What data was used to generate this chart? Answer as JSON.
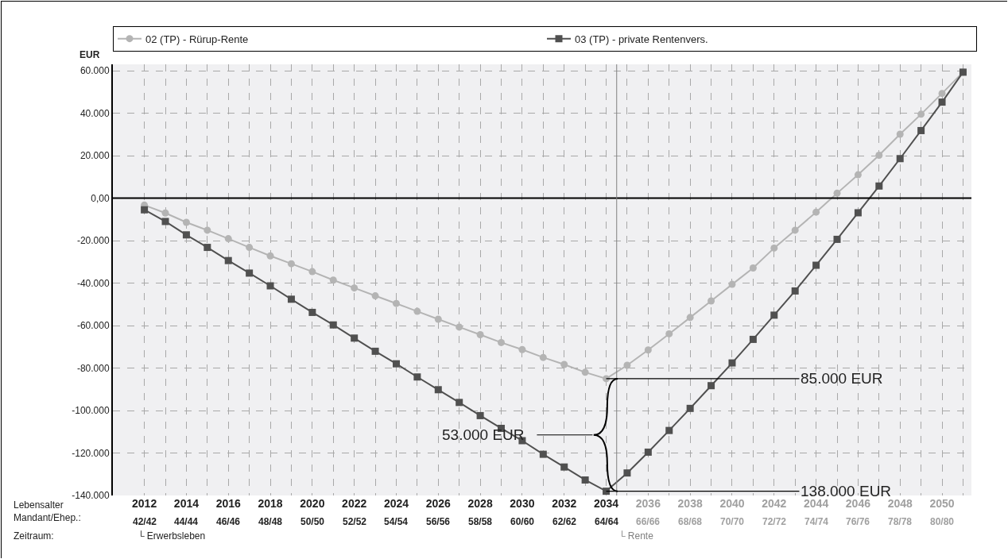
{
  "chart_data": {
    "type": "line",
    "ylabel": "EUR",
    "x": [
      2012,
      2013,
      2014,
      2015,
      2016,
      2017,
      2018,
      2019,
      2020,
      2021,
      2022,
      2023,
      2024,
      2025,
      2026,
      2027,
      2028,
      2029,
      2030,
      2031,
      2032,
      2033,
      2034,
      2035,
      2036,
      2037,
      2038,
      2039,
      2040,
      2041,
      2042,
      2043,
      2044,
      2045,
      2046,
      2047,
      2048,
      2049,
      2050,
      2051
    ],
    "series": [
      {
        "name": "02 (TP) - Rürup-Rente",
        "color": "#b4b4b4",
        "marker": "circle",
        "values": [
          -3300,
          -7000,
          -11400,
          -15100,
          -19100,
          -23200,
          -27200,
          -30900,
          -34600,
          -38600,
          -42300,
          -46000,
          -49600,
          -53300,
          -57000,
          -60700,
          -64300,
          -68000,
          -71300,
          -75000,
          -78300,
          -82000,
          -85000,
          -78700,
          -71500,
          -63900,
          -56200,
          -48400,
          -40600,
          -32900,
          -23500,
          -15100,
          -6600,
          2300,
          11000,
          20200,
          30100,
          39500,
          49300,
          59300
        ]
      },
      {
        "name": "03 (TP) - private Rentenvers.",
        "color": "#505050",
        "marker": "square",
        "values": [
          -5500,
          -11000,
          -17300,
          -23200,
          -29400,
          -35300,
          -41300,
          -47600,
          -53800,
          -59700,
          -65900,
          -72100,
          -78000,
          -84200,
          -90200,
          -96200,
          -102400,
          -108400,
          -114200,
          -120600,
          -126600,
          -132700,
          -138000,
          -129400,
          -119600,
          -109400,
          -99000,
          -88300,
          -77600,
          -66500,
          -55100,
          -43700,
          -31600,
          -19400,
          -6900,
          5700,
          18600,
          31800,
          45200,
          59300
        ]
      }
    ],
    "xlim": [
      2010.5,
      2051.4
    ],
    "xticks": [
      2012,
      {
        "value": 2013,
        "label": null
      },
      2014,
      {
        "value": 2015,
        "label": null
      },
      2016,
      {
        "value": 2017,
        "label": null
      },
      2018,
      {
        "value": 2019,
        "label": null
      },
      2020,
      {
        "value": 2021,
        "label": null
      },
      2022,
      {
        "value": 2023,
        "label": null
      },
      2024,
      {
        "value": 2025,
        "label": null
      },
      2026,
      {
        "value": 2027,
        "label": null
      },
      2028,
      {
        "value": 2029,
        "label": null
      },
      2030,
      {
        "value": 2031,
        "label": null
      },
      2032,
      {
        "value": 2033,
        "label": null
      },
      2034,
      {
        "value": 2035,
        "label": null
      },
      2036,
      {
        "value": 2037,
        "label": null
      },
      2038,
      {
        "value": 2039,
        "label": null
      },
      2040,
      {
        "value": 2041,
        "label": null
      },
      2042,
      {
        "value": 2043,
        "label": null
      },
      2044,
      {
        "value": 2045,
        "label": null
      },
      2046,
      {
        "value": 2047,
        "label": null
      },
      2048,
      {
        "value": 2049,
        "label": null
      },
      2050,
      {
        "value": 2051,
        "label": null
      }
    ],
    "ylim": [
      -140000,
      63000
    ],
    "yticks": [
      {
        "value": -140000,
        "label": "-140.000"
      },
      {
        "value": -120000,
        "label": "-120.000"
      },
      {
        "value": -100000,
        "label": "-100.000"
      },
      {
        "value": -80000,
        "label": "-80.000"
      },
      {
        "value": -60000,
        "label": "-60.000"
      },
      {
        "value": -40000,
        "label": "-40.000"
      },
      {
        "value": -20000,
        "label": "-20.000"
      },
      {
        "value": 0,
        "label": "0,00"
      },
      {
        "value": 20000,
        "label": "20.000"
      },
      {
        "value": 40000,
        "label": "40.000"
      },
      {
        "value": 60000,
        "label": "60.000"
      }
    ],
    "ref_lines": [
      {
        "axis": "y",
        "value": 0,
        "color": "#000000"
      },
      {
        "axis": "x",
        "value": 2034.5,
        "color": "#808080"
      }
    ],
    "annotations": [
      {
        "text": "85.000 EUR",
        "x": 2034,
        "y": -85000
      },
      {
        "text": "138.000 EUR",
        "x": 2034,
        "y": -138000
      },
      "53.000 EUR",
      "Lebensalter\nMandant/Ehep.:",
      "Zeitraum:",
      "└ Erwerbsleben",
      "└ Rente",
      "42/42",
      "44/44",
      "46/46",
      "48/48",
      "50/50",
      "52/52",
      "54/54",
      "56/56",
      "58/58",
      "60/60",
      "62/62",
      "64/64",
      "66/66",
      "68/68",
      "70/70",
      "72/72",
      "74/74",
      "76/76",
      "78/78",
      "80/80"
    ],
    "grid": true,
    "legend": "top",
    "line_style": "solid"
  }
}
